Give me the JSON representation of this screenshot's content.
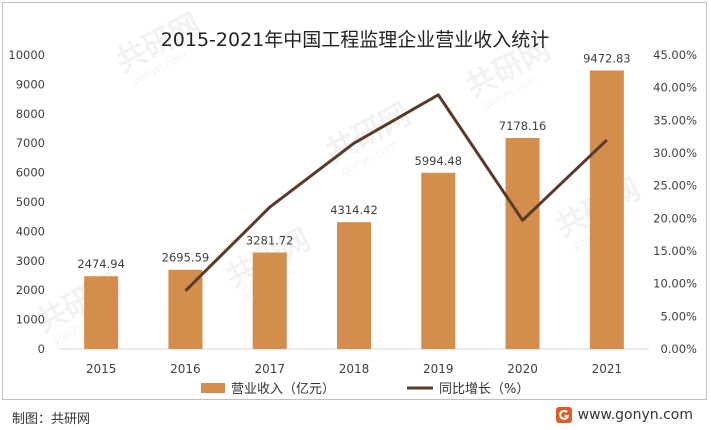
{
  "chart_data": {
    "type": "bar",
    "title": "2015-2021年中国工程监理企业营业收入统计",
    "categories": [
      "2015",
      "2016",
      "2017",
      "2018",
      "2019",
      "2020",
      "2021"
    ],
    "series": [
      {
        "name": "营业收入（亿元）",
        "type": "bar",
        "axis": "left",
        "values": [
          2474.94,
          2695.59,
          3281.72,
          4314.42,
          5994.48,
          7178.16,
          9472.83
        ],
        "data_labels": [
          "2474.94",
          "2695.59",
          "3281.72",
          "4314.42",
          "5994.48",
          "7178.16",
          "9472.83"
        ],
        "color": "#d38d4d"
      },
      {
        "name": "同比增长（%）",
        "type": "line",
        "axis": "right",
        "values": [
          null,
          8.9,
          21.7,
          31.5,
          38.9,
          19.7,
          32.0
        ],
        "color": "#5a3a2a"
      }
    ],
    "y_left": {
      "min": 0,
      "max": 10000,
      "ticks": [
        "0",
        "1000",
        "2000",
        "3000",
        "4000",
        "5000",
        "6000",
        "7000",
        "8000",
        "9000",
        "10000"
      ]
    },
    "y_right": {
      "min": 0,
      "max": 45,
      "ticks": [
        "0.00%",
        "5.00%",
        "10.00%",
        "15.00%",
        "20.00%",
        "25.00%",
        "30.00%",
        "35.00%",
        "40.00%",
        "45.00%"
      ]
    },
    "grid": false,
    "legend_position": "bottom"
  },
  "footer": {
    "credit": "制图：共研网",
    "site": "www.gonyn.com"
  },
  "watermark_text": "共研网",
  "watermark_sub": "gonyn.com"
}
